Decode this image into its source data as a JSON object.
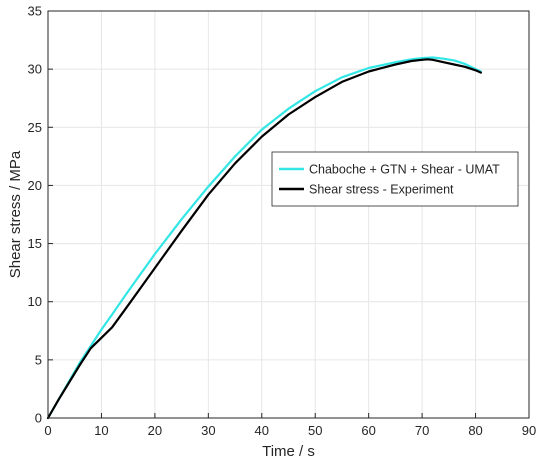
{
  "chart_data": {
    "type": "line",
    "xlabel": "Time / s",
    "ylabel": "Shear stress / MPa",
    "xlim": [
      0,
      90
    ],
    "ylim": [
      0,
      35
    ],
    "xticks": [
      "0",
      "10",
      "20",
      "30",
      "40",
      "50",
      "60",
      "70",
      "80",
      "90"
    ],
    "yticks": [
      "0",
      "5",
      "10",
      "15",
      "20",
      "25",
      "30",
      "35"
    ],
    "grid": true,
    "legend_position": "center-right",
    "series": [
      {
        "name": "Chaboche + GTN + Shear - UMAT",
        "color": "#33e6e6",
        "x": [
          0,
          2,
          4,
          6,
          8,
          10,
          12,
          15,
          20,
          25,
          30,
          35,
          40,
          45,
          50,
          55,
          60,
          65,
          68,
          70,
          72,
          74,
          76,
          78,
          80,
          81
        ],
        "y": [
          0,
          1.6,
          3.2,
          4.8,
          6.2,
          7.6,
          8.9,
          10.9,
          14.1,
          17.1,
          19.9,
          22.5,
          24.8,
          26.6,
          28.1,
          29.3,
          30.1,
          30.6,
          30.85,
          30.95,
          31.0,
          30.9,
          30.75,
          30.45,
          30.0,
          29.8
        ]
      },
      {
        "name": "Shear stress - Experiment",
        "color": "#000000",
        "x": [
          0,
          2,
          4,
          6,
          8,
          10,
          12,
          15,
          20,
          25,
          30,
          35,
          40,
          45,
          50,
          55,
          60,
          65,
          68,
          70,
          71,
          72,
          74,
          76,
          78,
          80,
          81
        ],
        "y": [
          0,
          1.6,
          3.1,
          4.6,
          6.0,
          6.9,
          7.8,
          9.7,
          12.9,
          16.1,
          19.2,
          21.9,
          24.2,
          26.1,
          27.6,
          28.9,
          29.8,
          30.4,
          30.7,
          30.8,
          30.85,
          30.8,
          30.6,
          30.4,
          30.2,
          29.9,
          29.7
        ]
      }
    ]
  }
}
